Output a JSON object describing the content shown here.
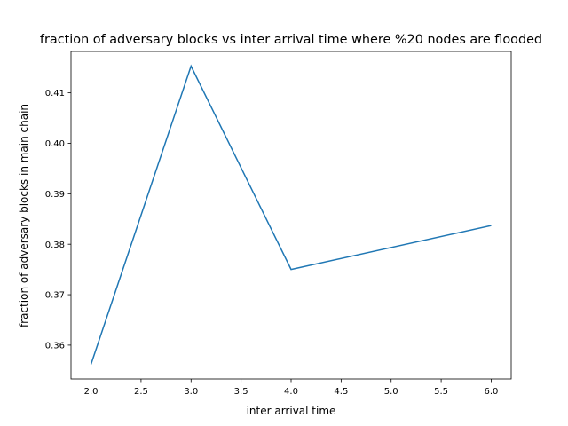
{
  "chart_data": {
    "type": "line",
    "title": "fraction of adversary blocks vs inter arrival time where %20 nodes are flooded",
    "xlabel": "inter arrival time",
    "ylabel": "fraction of adversary blocks in main chain",
    "xlim": [
      1.8,
      6.2
    ],
    "ylim": [
      0.3533,
      0.4182
    ],
    "xticks": [
      2.0,
      2.5,
      3.0,
      3.5,
      4.0,
      4.5,
      5.0,
      5.5,
      6.0
    ],
    "xtick_labels": [
      "2.0",
      "2.5",
      "3.0",
      "3.5",
      "4.0",
      "4.5",
      "5.0",
      "5.5",
      "6.0"
    ],
    "yticks": [
      0.36,
      0.37,
      0.38,
      0.39,
      0.4,
      0.41
    ],
    "ytick_labels": [
      "0.36",
      "0.37",
      "0.38",
      "0.39",
      "0.40",
      "0.41"
    ],
    "grid": false,
    "series": [
      {
        "x": [
          2,
          3,
          4,
          6
        ],
        "y": [
          0.3562,
          0.4153,
          0.375,
          0.3837
        ],
        "color": "#1f77b4"
      }
    ]
  }
}
